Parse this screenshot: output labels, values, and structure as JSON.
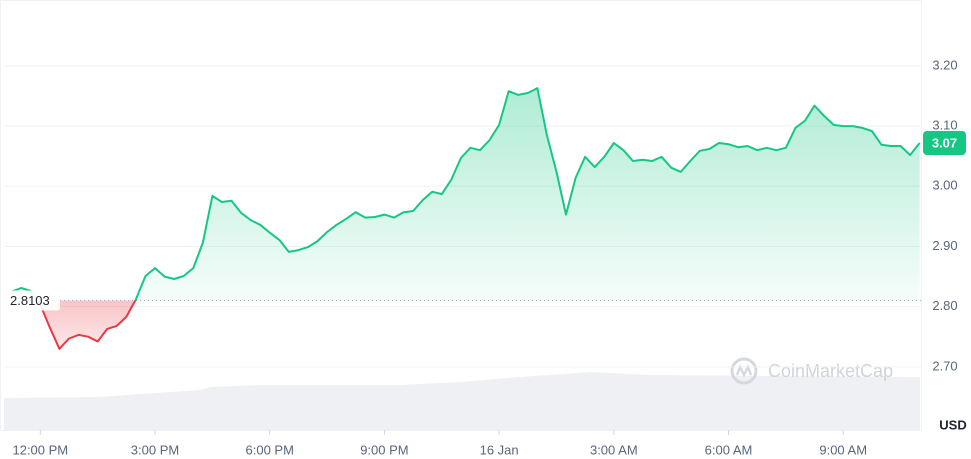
{
  "chart_data": {
    "type": "line",
    "x": [
      -0.75,
      -0.5,
      -0.25,
      0,
      0.25,
      0.5,
      0.75,
      1,
      1.25,
      1.5,
      1.75,
      2,
      2.25,
      2.5,
      2.75,
      3,
      3.25,
      3.5,
      3.75,
      4,
      4.25,
      4.5,
      4.75,
      5,
      5.25,
      5.5,
      5.75,
      6,
      6.25,
      6.5,
      6.75,
      7,
      7.25,
      7.5,
      7.75,
      8,
      8.25,
      8.5,
      8.75,
      9,
      9.25,
      9.5,
      9.75,
      10,
      10.25,
      10.5,
      10.75,
      11,
      11.25,
      11.5,
      11.75,
      12,
      12.25,
      12.5,
      12.75,
      13,
      13.25,
      13.5,
      13.75,
      14,
      14.25,
      14.5,
      14.75,
      15,
      15.25,
      15.5,
      15.75,
      16,
      16.25,
      16.5,
      16.75,
      17,
      17.25,
      17.5,
      17.75,
      18,
      18.25,
      18.5,
      18.75,
      19,
      19.25,
      19.5,
      19.75,
      20,
      20.25,
      20.5,
      20.75,
      21,
      21.25,
      21.5,
      21.75,
      22,
      22.25,
      22.5,
      22.75,
      23
    ],
    "values": [
      2.825,
      2.831,
      2.826,
      2.803,
      2.765,
      2.73,
      2.747,
      2.753,
      2.75,
      2.742,
      2.763,
      2.768,
      2.783,
      2.812,
      2.851,
      2.864,
      2.85,
      2.846,
      2.851,
      2.864,
      2.906,
      2.984,
      2.974,
      2.976,
      2.956,
      2.944,
      2.936,
      2.923,
      2.911,
      2.891,
      2.894,
      2.899,
      2.909,
      2.924,
      2.936,
      2.946,
      2.957,
      2.948,
      2.949,
      2.953,
      2.948,
      2.957,
      2.959,
      2.977,
      2.991,
      2.987,
      3.011,
      3.047,
      3.064,
      3.06,
      3.077,
      3.102,
      3.158,
      3.152,
      3.155,
      3.163,
      3.085,
      3.024,
      2.953,
      3.014,
      3.049,
      3.032,
      3.049,
      3.072,
      3.06,
      3.042,
      3.044,
      3.042,
      3.049,
      3.031,
      3.024,
      3.042,
      3.059,
      3.062,
      3.072,
      3.07,
      3.065,
      3.067,
      3.06,
      3.064,
      3.06,
      3.064,
      3.097,
      3.109,
      3.134,
      3.117,
      3.102,
      3.1,
      3.1,
      3.097,
      3.092,
      3.069,
      3.067,
      3.067,
      3.052,
      3.072
    ],
    "last_value_label": "3.07",
    "baseline": 2.8103,
    "color_up": "#16c784",
    "color_down": "#ea3943",
    "xlim": [
      -0.95,
      23.05
    ],
    "xticks": [
      {
        "value": 0,
        "label": "12:00 PM"
      },
      {
        "value": 3,
        "label": "3:00 PM"
      },
      {
        "value": 6,
        "label": "6:00 PM"
      },
      {
        "value": 9,
        "label": "9:00 PM"
      },
      {
        "value": 12,
        "label": "16 Jan"
      },
      {
        "value": 15,
        "label": "3:00 AM"
      },
      {
        "value": 18,
        "label": "6:00 AM"
      },
      {
        "value": 21,
        "label": "9:00 AM"
      }
    ],
    "ylim": [
      2.595,
      3.3
    ],
    "yticks": [
      {
        "value": 2.7,
        "label": "2.70"
      },
      {
        "value": 2.8,
        "label": "2.80"
      },
      {
        "value": 2.9,
        "label": "2.90"
      },
      {
        "value": 3,
        "label": "3.00"
      },
      {
        "value": 3.1,
        "label": "3.10"
      },
      {
        "value": 3.2,
        "label": "3.20"
      }
    ],
    "y_axis_label": "USD",
    "watermark": "CoinMarketCap",
    "grid": true
  }
}
